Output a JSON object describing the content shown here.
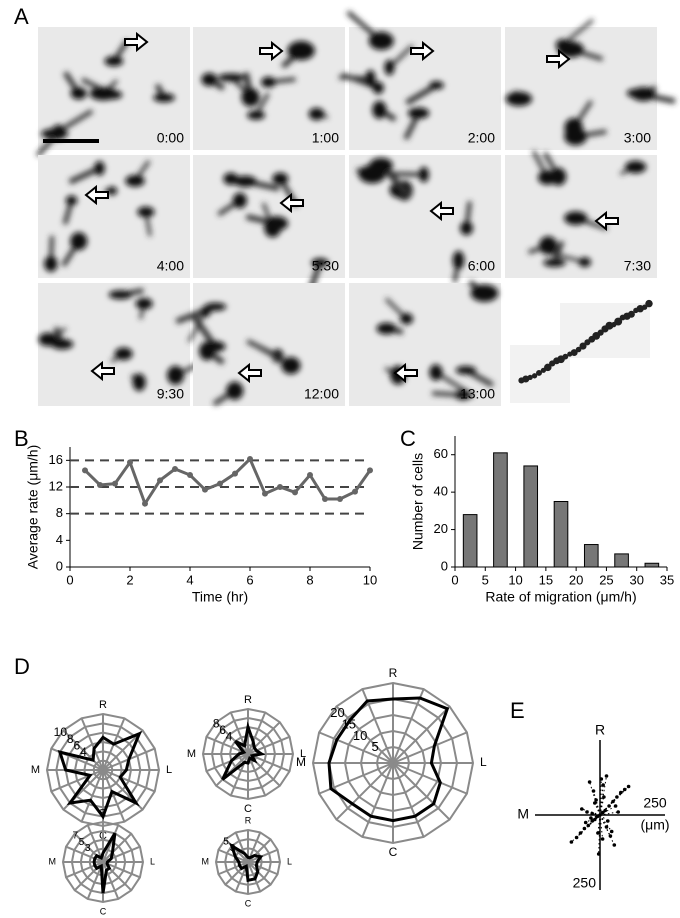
{
  "panel_labels": [
    "A",
    "B",
    "C",
    "D",
    "E"
  ],
  "panel_a": {
    "timestamps": [
      "0:00",
      "1:00",
      "2:00",
      "3:00",
      "4:00",
      "5:30",
      "6:00",
      "7:30",
      "9:30",
      "12:00",
      "13:00"
    ]
  },
  "chart_data": [
    {
      "type": "line",
      "x_label": "Time (hr)",
      "y_label": "Average rate (μm/h)",
      "x": [
        0.5,
        1,
        1.5,
        2,
        2.5,
        3,
        3.5,
        4,
        4.5,
        5,
        5.5,
        6,
        6.5,
        7,
        7.5,
        8,
        8.5,
        9,
        9.5,
        10
      ],
      "values": [
        14.5,
        12.3,
        12.5,
        15.7,
        9.5,
        13,
        14.7,
        13.8,
        11.6,
        12.5,
        14,
        16.2,
        11,
        12,
        11.2,
        13.8,
        10.2,
        10.2,
        11.3,
        14.5
      ],
      "color": "#666666",
      "reference_lines": [
        8,
        12,
        16
      ],
      "xlim": [
        0,
        10
      ],
      "xticks": [
        0,
        2,
        4,
        6,
        8,
        10
      ],
      "ylim": [
        0,
        18
      ],
      "yticks": [
        0,
        4,
        8,
        12,
        16
      ]
    },
    {
      "type": "bar",
      "x_label": "Rate of migration (μm/h)",
      "y_label": "Number of cells",
      "x": [
        2.5,
        7.5,
        12.5,
        17.5,
        22.5,
        27.5,
        32.5
      ],
      "values": [
        28,
        61,
        54,
        35,
        12,
        7,
        2
      ],
      "color": "#777777",
      "xlim": [
        0,
        35
      ],
      "xticks": [
        0,
        5,
        10,
        15,
        20,
        25,
        30,
        35
      ],
      "ylim": [
        0,
        70
      ],
      "yticks": [
        0,
        20,
        40,
        60
      ]
    },
    {
      "type": "radar",
      "direction_labels": [
        "R",
        "L",
        "C",
        "M"
      ],
      "rlim": [
        0,
        12
      ],
      "rgrid": [
        2,
        4,
        6,
        8,
        10,
        12
      ],
      "rticks": [
        4,
        6,
        8,
        10
      ],
      "values": [
        7,
        6,
        11,
        6,
        5,
        4,
        10,
        5,
        10,
        7,
        10,
        3,
        8,
        10,
        3,
        5
      ]
    },
    {
      "type": "radar",
      "direction_labels": [
        "R",
        "L",
        "C",
        "M"
      ],
      "rlim": [
        0,
        10
      ],
      "rgrid": [
        2,
        4,
        6,
        8,
        10
      ],
      "rticks": [
        4,
        6,
        8
      ],
      "values": [
        6,
        3,
        2,
        2,
        3,
        1,
        2,
        1,
        2,
        2,
        8,
        4,
        2,
        1,
        4,
        2
      ]
    },
    {
      "type": "radar",
      "direction_labels": [
        "R",
        "L",
        "C",
        "M"
      ],
      "rlim": [
        0,
        25
      ],
      "rgrid": [
        5,
        10,
        15,
        20,
        25
      ],
      "rticks": [
        5,
        10,
        15,
        20
      ],
      "values": [
        20,
        22,
        24,
        14,
        12,
        16,
        18,
        18,
        18,
        18,
        18,
        21,
        20,
        19,
        19,
        21
      ]
    },
    {
      "type": "radar",
      "direction_labels": [
        "R",
        "L",
        "C",
        "M"
      ],
      "rlim": [
        0,
        9
      ],
      "rgrid": [
        1,
        3,
        5,
        7,
        9
      ],
      "rticks": [
        3,
        5,
        7
      ],
      "values": [
        2,
        7,
        3,
        2,
        1,
        1,
        2,
        2,
        7,
        1,
        2,
        2,
        2,
        2,
        2,
        1
      ]
    },
    {
      "type": "radar",
      "direction_labels": [
        "R",
        "L",
        "C",
        "M"
      ],
      "rlim": [
        0,
        7
      ],
      "rgrid": [
        1,
        3,
        5,
        7
      ],
      "rticks": [
        3,
        5
      ],
      "values": [
        1,
        1,
        2,
        3,
        2,
        2,
        3,
        4,
        4,
        1,
        2,
        2,
        2,
        3,
        5,
        2
      ]
    },
    {
      "type": "scatter",
      "axis_labels": {
        "top": "R",
        "left": "M",
        "right": "250",
        "right_unit": "(μm)",
        "bottom": "250"
      },
      "xlim": [
        -250,
        250
      ],
      "ylim": [
        -250,
        250
      ],
      "x": [
        -110,
        -90,
        -75,
        -60,
        -45,
        -30,
        -20,
        -10,
        0,
        10,
        20,
        35,
        50,
        65,
        80,
        95,
        110,
        -40,
        -25,
        -15,
        5,
        15,
        25,
        40,
        55,
        -70,
        -50,
        -35,
        -5,
        30,
        45,
        60,
        -20,
        10,
        -55,
        70,
        -8,
        12,
        25,
        -30
      ],
      "values": [
        -90,
        -75,
        -60,
        -45,
        -35,
        -20,
        -15,
        -5,
        0,
        8,
        15,
        30,
        45,
        60,
        75,
        85,
        95,
        110,
        80,
        50,
        120,
        60,
        -40,
        -70,
        -100,
        20,
        10,
        -10,
        -130,
        -20,
        -55,
        30,
        40,
        -80,
        -25,
        10,
        -60,
        100,
        130,
        5
      ]
    }
  ]
}
